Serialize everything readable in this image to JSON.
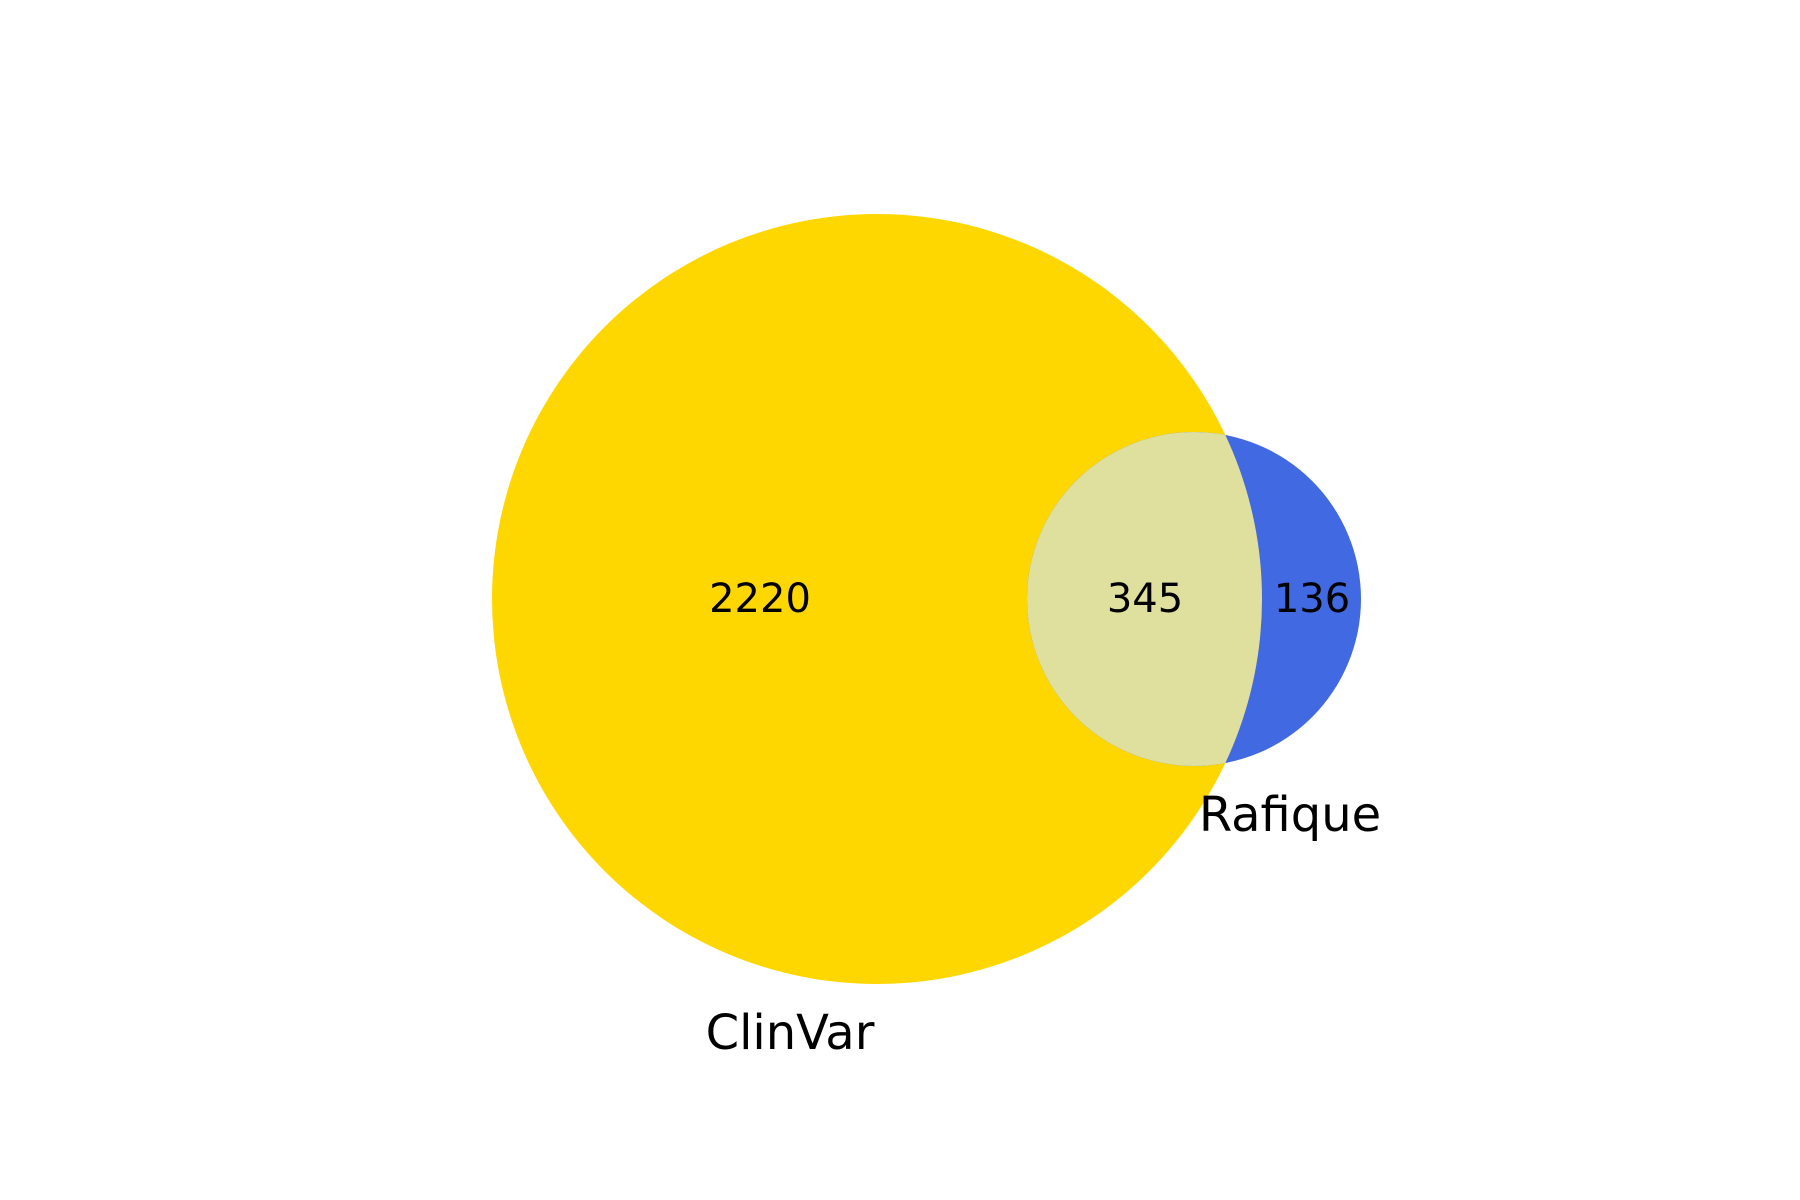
{
  "diagram": {
    "type": "venn2",
    "sets": [
      {
        "name": "ClinVar",
        "color": "#FFD700"
      },
      {
        "name": "Rafique",
        "color": "#4169E1"
      }
    ],
    "overlap_color": "#DFE09D",
    "counts": {
      "clinvar_only": "2220",
      "overlap": "345",
      "rafique_only": "136"
    }
  }
}
